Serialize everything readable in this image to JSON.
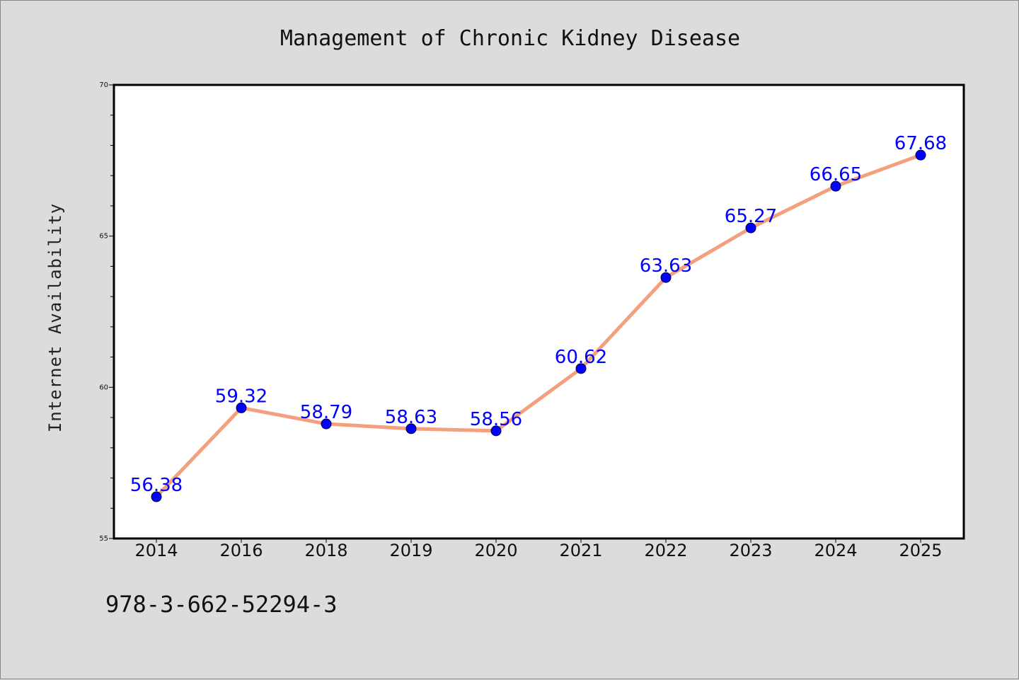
{
  "chart_data": {
    "type": "line",
    "title": "Management of Chronic Kidney Disease",
    "xlabel": "",
    "ylabel": "Internet Availability",
    "categories": [
      "2014",
      "2016",
      "2018",
      "2019",
      "2020",
      "2021",
      "2022",
      "2023",
      "2024",
      "2025"
    ],
    "series": [
      {
        "values": [
          56.38,
          59.32,
          58.79,
          58.63,
          58.56,
          60.62,
          63.63,
          65.27,
          66.65,
          67.68
        ]
      }
    ],
    "data_labels": [
      "56.38",
      "59.32",
      "58.79",
      "58.63",
      "58.56",
      "60.62",
      "63.63",
      "65.27",
      "66.65",
      "67.68"
    ],
    "ylim": [
      55,
      70
    ],
    "yticks": [
      "55",
      "60",
      "65",
      "70"
    ],
    "grid": false,
    "legend": "none",
    "colors": {
      "line": "#f4a07e",
      "marker": "#0000ff",
      "label": "#0000ff",
      "background": "#dcdcdc",
      "plot_area": "#ffffff"
    }
  },
  "footer": {
    "isbn": "978-3-662-52294-3"
  }
}
